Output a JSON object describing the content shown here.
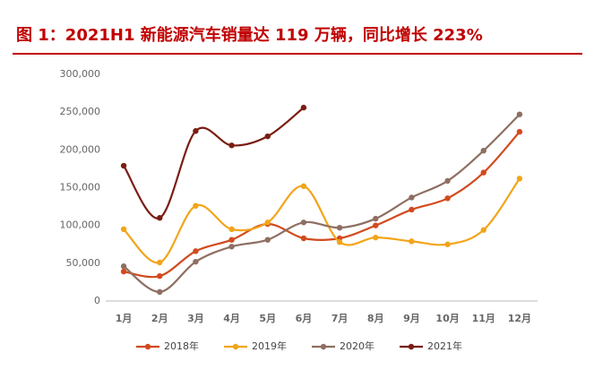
{
  "chart_data": {
    "type": "line",
    "title": "图 1：2021H1 新能源汽车销量达 119 万辆，同比增长 223%",
    "categories": [
      "1月",
      "2月",
      "3月",
      "4月",
      "5月",
      "6月",
      "7月",
      "8月",
      "9月",
      "10月",
      "11月",
      "12月"
    ],
    "series": [
      {
        "name": "2018年",
        "color": "#d24a1e",
        "values": [
          39000,
          33000,
          66000,
          81000,
          102000,
          83000,
          83000,
          100000,
          121000,
          136000,
          170000,
          224000
        ]
      },
      {
        "name": "2019年",
        "color": "#f2a51a",
        "values": [
          95000,
          51000,
          126000,
          95000,
          104000,
          152000,
          78000,
          84000,
          79000,
          75000,
          94000,
          162000
        ]
      },
      {
        "name": "2020年",
        "color": "#8e6f62",
        "values": [
          46000,
          12000,
          52000,
          72000,
          81000,
          104000,
          97000,
          109000,
          137000,
          159000,
          199000,
          247000
        ]
      },
      {
        "name": "2021年",
        "color": "#7a1d12",
        "values": [
          179000,
          110000,
          225000,
          206000,
          218000,
          256000,
          null,
          null,
          null,
          null,
          null,
          null
        ]
      }
    ],
    "ylim": [
      0,
      300000
    ],
    "yticks": [
      0,
      {
        "value": 50000,
        "label": "50,000"
      },
      {
        "value": 100000,
        "label": "100,000"
      },
      {
        "value": 150000,
        "label": "150,000"
      },
      {
        "value": 200000,
        "label": "200,000"
      },
      {
        "value": 250000,
        "label": "250,000"
      },
      {
        "value": 300000,
        "label": "300,000"
      }
    ],
    "grid": false,
    "legend": "bottom"
  }
}
